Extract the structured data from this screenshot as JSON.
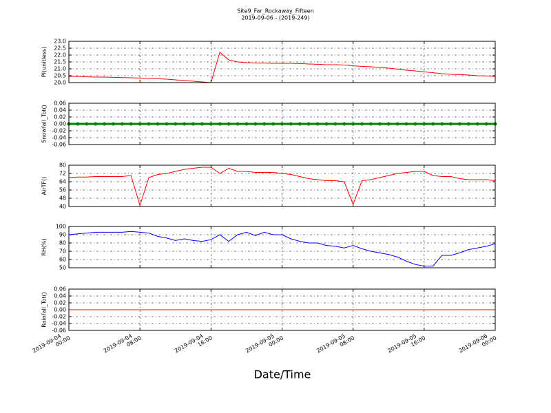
{
  "chart_data": [
    {
      "type": "line",
      "title": "Site9_Far_Rockaway_Fifteen",
      "subtitle": "2019-09-06 - (2019-249)",
      "ylabel": "PI(unitless)",
      "color": "#ff0000",
      "x": [
        "2019-09-04 00:00",
        "2019-09-04 01:00",
        "2019-09-04 02:00",
        "2019-09-04 03:00",
        "2019-09-04 04:00",
        "2019-09-04 05:00",
        "2019-09-04 06:00",
        "2019-09-04 07:00",
        "2019-09-04 08:00",
        "2019-09-04 09:00",
        "2019-09-04 10:00",
        "2019-09-04 11:00",
        "2019-09-04 12:00",
        "2019-09-04 13:00",
        "2019-09-04 14:00",
        "2019-09-04 15:00",
        "2019-09-04 16:00",
        "2019-09-04 17:00",
        "2019-09-04 18:00",
        "2019-09-04 19:00",
        "2019-09-04 20:00",
        "2019-09-04 21:00",
        "2019-09-04 22:00",
        "2019-09-04 23:00",
        "2019-09-05 00:00",
        "2019-09-05 01:00",
        "2019-09-05 02:00",
        "2019-09-05 03:00",
        "2019-09-05 04:00",
        "2019-09-05 05:00",
        "2019-09-05 06:00",
        "2019-09-05 07:00",
        "2019-09-05 08:00",
        "2019-09-05 09:00",
        "2019-09-05 10:00",
        "2019-09-05 11:00",
        "2019-09-05 12:00",
        "2019-09-05 13:00",
        "2019-09-05 14:00",
        "2019-09-05 15:00",
        "2019-09-05 16:00",
        "2019-09-05 17:00",
        "2019-09-05 18:00",
        "2019-09-05 19:00",
        "2019-09-05 20:00",
        "2019-09-05 21:00",
        "2019-09-05 22:00",
        "2019-09-05 23:00",
        "2019-09-06 00:00"
      ],
      "values": [
        20.45,
        20.45,
        20.42,
        20.4,
        20.4,
        20.38,
        20.36,
        20.35,
        20.33,
        20.3,
        20.28,
        20.25,
        20.2,
        20.15,
        20.1,
        20.05,
        20.0,
        22.2,
        21.65,
        21.5,
        21.45,
        21.42,
        21.42,
        21.4,
        21.4,
        21.4,
        21.38,
        21.35,
        21.33,
        21.3,
        21.3,
        21.28,
        21.22,
        21.18,
        21.15,
        21.1,
        21.05,
        20.98,
        20.9,
        20.85,
        20.78,
        20.72,
        20.65,
        20.6,
        20.58,
        20.55,
        20.5,
        20.48,
        20.45
      ],
      "xlim": [
        "2019-09-04 00:00",
        "2019-09-06 00:00"
      ],
      "xticks": [
        "2019-09-04 00:00",
        "2019-09-04 08:00",
        "2019-09-04 16:00",
        "2019-09-05 00:00",
        "2019-09-05 08:00",
        "2019-09-05 16:00",
        "2019-09-06 00:00"
      ],
      "ylim": [
        20,
        23
      ],
      "yticks": [
        {
          "value": 20,
          "label": "20.0"
        },
        20.5,
        {
          "value": 21,
          "label": "21.0"
        },
        21.5,
        {
          "value": 22,
          "label": "22.0"
        },
        22.5,
        {
          "value": 23,
          "label": "23.0"
        }
      ],
      "grid": true
    },
    {
      "type": "line",
      "ylabel": "Snowfall_Tot()",
      "color": "#008000",
      "marker": "o",
      "x": [
        "2019-09-04 00:00",
        "2019-09-04 01:00",
        "2019-09-04 02:00",
        "2019-09-04 03:00",
        "2019-09-04 04:00",
        "2019-09-04 05:00",
        "2019-09-04 06:00",
        "2019-09-04 07:00",
        "2019-09-04 08:00",
        "2019-09-04 09:00",
        "2019-09-04 10:00",
        "2019-09-04 11:00",
        "2019-09-04 12:00",
        "2019-09-04 13:00",
        "2019-09-04 14:00",
        "2019-09-04 15:00",
        "2019-09-04 16:00",
        "2019-09-04 17:00",
        "2019-09-04 18:00",
        "2019-09-04 19:00",
        "2019-09-04 20:00",
        "2019-09-04 21:00",
        "2019-09-04 22:00",
        "2019-09-04 23:00",
        "2019-09-05 00:00",
        "2019-09-05 01:00",
        "2019-09-05 02:00",
        "2019-09-05 03:00",
        "2019-09-05 04:00",
        "2019-09-05 05:00",
        "2019-09-05 06:00",
        "2019-09-05 07:00",
        "2019-09-05 08:00",
        "2019-09-05 09:00",
        "2019-09-05 10:00",
        "2019-09-05 11:00",
        "2019-09-05 12:00",
        "2019-09-05 13:00",
        "2019-09-05 14:00",
        "2019-09-05 15:00",
        "2019-09-05 16:00",
        "2019-09-05 17:00",
        "2019-09-05 18:00",
        "2019-09-05 19:00",
        "2019-09-05 20:00",
        "2019-09-05 21:00",
        "2019-09-05 22:00",
        "2019-09-05 23:00",
        "2019-09-06 00:00"
      ],
      "values": [
        0,
        0,
        0,
        0,
        0,
        0,
        0,
        0,
        0,
        0,
        0,
        0,
        0,
        0,
        0,
        0,
        0,
        0,
        0,
        0,
        0,
        0,
        0,
        0,
        0,
        0,
        0,
        0,
        0,
        0,
        0,
        0,
        0,
        0,
        0,
        0,
        0,
        0,
        0,
        0,
        0,
        0,
        0,
        0,
        0,
        0,
        0,
        0,
        0
      ],
      "xlim": [
        "2019-09-04 00:00",
        "2019-09-06 00:00"
      ],
      "xticks": [
        "2019-09-04 00:00",
        "2019-09-04 08:00",
        "2019-09-04 16:00",
        "2019-09-05 00:00",
        "2019-09-05 08:00",
        "2019-09-05 16:00",
        "2019-09-06 00:00"
      ],
      "ylim": [
        -0.06,
        0.06
      ],
      "yticks": [
        -0.06,
        -0.04,
        -0.02,
        {
          "value": 0,
          "label": "0.00"
        },
        0.02,
        0.04,
        0.06
      ],
      "grid": true
    },
    {
      "type": "line",
      "ylabel": "AirTF()",
      "color": "#ff0000",
      "x": [
        "2019-09-04 00:00",
        "2019-09-04 01:00",
        "2019-09-04 02:00",
        "2019-09-04 03:00",
        "2019-09-04 04:00",
        "2019-09-04 05:00",
        "2019-09-04 06:00",
        "2019-09-04 07:00",
        "2019-09-04 08:00",
        "2019-09-04 09:00",
        "2019-09-04 10:00",
        "2019-09-04 11:00",
        "2019-09-04 12:00",
        "2019-09-04 13:00",
        "2019-09-04 14:00",
        "2019-09-04 15:00",
        "2019-09-04 16:00",
        "2019-09-04 17:00",
        "2019-09-04 18:00",
        "2019-09-04 19:00",
        "2019-09-04 20:00",
        "2019-09-04 21:00",
        "2019-09-04 22:00",
        "2019-09-04 23:00",
        "2019-09-05 00:00",
        "2019-09-05 01:00",
        "2019-09-05 02:00",
        "2019-09-05 03:00",
        "2019-09-05 04:00",
        "2019-09-05 05:00",
        "2019-09-05 06:00",
        "2019-09-05 07:00",
        "2019-09-05 08:00",
        "2019-09-05 09:00",
        "2019-09-05 10:00",
        "2019-09-05 11:00",
        "2019-09-05 12:00",
        "2019-09-05 13:00",
        "2019-09-05 14:00",
        "2019-09-05 15:00",
        "2019-09-05 16:00",
        "2019-09-05 17:00",
        "2019-09-05 18:00",
        "2019-09-05 19:00",
        "2019-09-05 20:00",
        "2019-09-05 21:00",
        "2019-09-05 22:00",
        "2019-09-05 23:00",
        "2019-09-06 00:00"
      ],
      "values": [
        68,
        68.5,
        68.5,
        69,
        69,
        69,
        69,
        70,
        41,
        68,
        71,
        72,
        74,
        76,
        77,
        78,
        78,
        72,
        77,
        74,
        74,
        73,
        73,
        73,
        72,
        71,
        69,
        67,
        66,
        65,
        65,
        64,
        42,
        65,
        66,
        68,
        70,
        72,
        73,
        74,
        74,
        70,
        69,
        69,
        67,
        66,
        66,
        66,
        65
      ],
      "xlim": [
        "2019-09-04 00:00",
        "2019-09-06 00:00"
      ],
      "xticks": [
        "2019-09-04 00:00",
        "2019-09-04 08:00",
        "2019-09-04 16:00",
        "2019-09-05 00:00",
        "2019-09-05 08:00",
        "2019-09-05 16:00",
        "2019-09-06 00:00"
      ],
      "ylim": [
        40,
        80
      ],
      "yticks": [
        40,
        48,
        56,
        64,
        72,
        80
      ],
      "grid": true
    },
    {
      "type": "line",
      "ylabel": "RH(%)",
      "color": "#0000ff",
      "x": [
        "2019-09-04 00:00",
        "2019-09-04 01:00",
        "2019-09-04 02:00",
        "2019-09-04 03:00",
        "2019-09-04 04:00",
        "2019-09-04 05:00",
        "2019-09-04 06:00",
        "2019-09-04 07:00",
        "2019-09-04 08:00",
        "2019-09-04 09:00",
        "2019-09-04 10:00",
        "2019-09-04 11:00",
        "2019-09-04 12:00",
        "2019-09-04 13:00",
        "2019-09-04 14:00",
        "2019-09-04 15:00",
        "2019-09-04 16:00",
        "2019-09-04 17:00",
        "2019-09-04 18:00",
        "2019-09-04 19:00",
        "2019-09-04 20:00",
        "2019-09-04 21:00",
        "2019-09-04 22:00",
        "2019-09-04 23:00",
        "2019-09-05 00:00",
        "2019-09-05 01:00",
        "2019-09-05 02:00",
        "2019-09-05 03:00",
        "2019-09-05 04:00",
        "2019-09-05 05:00",
        "2019-09-05 06:00",
        "2019-09-05 07:00",
        "2019-09-05 08:00",
        "2019-09-05 09:00",
        "2019-09-05 10:00",
        "2019-09-05 11:00",
        "2019-09-05 12:00",
        "2019-09-05 13:00",
        "2019-09-05 14:00",
        "2019-09-05 15:00",
        "2019-09-05 16:00",
        "2019-09-05 17:00",
        "2019-09-05 18:00",
        "2019-09-05 19:00",
        "2019-09-05 20:00",
        "2019-09-05 21:00",
        "2019-09-05 22:00",
        "2019-09-05 23:00",
        "2019-09-06 00:00"
      ],
      "values": [
        90,
        91,
        92,
        93,
        93,
        93,
        93,
        94,
        93,
        92,
        88,
        86,
        83,
        85,
        83,
        82,
        84,
        90,
        82,
        90,
        93,
        89,
        93,
        90,
        90,
        85,
        82,
        80,
        80,
        77,
        76,
        74,
        77,
        73,
        70,
        68,
        66,
        63,
        58,
        54,
        52,
        52,
        65,
        65,
        68,
        72,
        74,
        76,
        79
      ],
      "xlim": [
        "2019-09-04 00:00",
        "2019-09-06 00:00"
      ],
      "xticks": [
        "2019-09-04 00:00",
        "2019-09-04 08:00",
        "2019-09-04 16:00",
        "2019-09-05 00:00",
        "2019-09-05 08:00",
        "2019-09-05 16:00",
        "2019-09-06 00:00"
      ],
      "ylim": [
        50,
        100
      ],
      "yticks": [
        50,
        60,
        70,
        80,
        90,
        100
      ],
      "grid": true
    },
    {
      "type": "line",
      "ylabel": "Rainfall_Tot()",
      "color": "#ff0000",
      "xlabel": "Date/Time",
      "x": [
        "2019-09-04 00:00",
        "2019-09-04 01:00",
        "2019-09-04 02:00",
        "2019-09-04 03:00",
        "2019-09-04 04:00",
        "2019-09-04 05:00",
        "2019-09-04 06:00",
        "2019-09-04 07:00",
        "2019-09-04 08:00",
        "2019-09-04 09:00",
        "2019-09-04 10:00",
        "2019-09-04 11:00",
        "2019-09-04 12:00",
        "2019-09-04 13:00",
        "2019-09-04 14:00",
        "2019-09-04 15:00",
        "2019-09-04 16:00",
        "2019-09-04 17:00",
        "2019-09-04 18:00",
        "2019-09-04 19:00",
        "2019-09-04 20:00",
        "2019-09-04 21:00",
        "2019-09-04 22:00",
        "2019-09-04 23:00",
        "2019-09-05 00:00",
        "2019-09-05 01:00",
        "2019-09-05 02:00",
        "2019-09-05 03:00",
        "2019-09-05 04:00",
        "2019-09-05 05:00",
        "2019-09-05 06:00",
        "2019-09-05 07:00",
        "2019-09-05 08:00",
        "2019-09-05 09:00",
        "2019-09-05 10:00",
        "2019-09-05 11:00",
        "2019-09-05 12:00",
        "2019-09-05 13:00",
        "2019-09-05 14:00",
        "2019-09-05 15:00",
        "2019-09-05 16:00",
        "2019-09-05 17:00",
        "2019-09-05 18:00",
        "2019-09-05 19:00",
        "2019-09-05 20:00",
        "2019-09-05 21:00",
        "2019-09-05 22:00",
        "2019-09-05 23:00",
        "2019-09-06 00:00"
      ],
      "values": [
        0,
        0,
        0,
        0,
        0,
        0,
        0,
        0,
        0,
        0,
        0,
        0,
        0,
        0,
        0,
        0,
        0,
        0,
        0,
        0,
        0,
        0,
        0,
        0,
        0,
        0,
        0,
        0,
        0,
        0,
        0,
        0,
        0,
        0,
        0,
        0,
        0,
        0,
        0,
        0,
        0,
        0,
        0,
        0,
        0,
        0,
        0,
        0,
        0
      ],
      "xlim": [
        "2019-09-04 00:00",
        "2019-09-06 00:00"
      ],
      "xticks": [
        {
          "value": "2019-09-04 00:00",
          "label": "2019-09-04\n00:00"
        },
        {
          "value": "2019-09-04 08:00",
          "label": "2019-09-04\n08:00"
        },
        {
          "value": "2019-09-04 16:00",
          "label": "2019-09-04\n16:00"
        },
        {
          "value": "2019-09-05 00:00",
          "label": "2019-09-05\n00:00"
        },
        {
          "value": "2019-09-05 08:00",
          "label": "2019-09-05\n08:00"
        },
        {
          "value": "2019-09-05 16:00",
          "label": "2019-09-05\n16:00"
        },
        {
          "value": "2019-09-06 00:00",
          "label": "2019-09-06\n00:00"
        }
      ],
      "ylim": [
        -0.06,
        0.06
      ],
      "yticks": [
        -0.06,
        -0.04,
        -0.02,
        {
          "value": 0,
          "label": "0.00"
        },
        0.02,
        0.04,
        0.06
      ],
      "grid": true
    }
  ]
}
